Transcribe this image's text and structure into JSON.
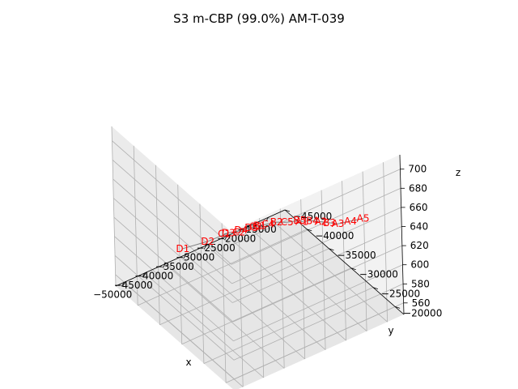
{
  "chart_data": {
    "type": "scatter",
    "projection": "3d",
    "title": "S3 m-CBP (99.0%) AM-T-039",
    "xlabel": "x",
    "ylabel": "y",
    "zlabel": "z",
    "xlim": [
      -52000,
      -11000
    ],
    "ylim": [
      -45000,
      -18000
    ],
    "zlim": [
      548,
      715
    ],
    "x_ticks": [
      -50000,
      -45000,
      -40000,
      -35000,
      -30000,
      -25000,
      -20000,
      -15000
    ],
    "y_ticks": [
      -45000,
      -40000,
      -35000,
      -30000,
      -25000,
      -20000
    ],
    "z_ticks": [
      560,
      580,
      600,
      620,
      640,
      660,
      680,
      700
    ],
    "tick_labels": {
      "x": [
        "−50000",
        "−45000",
        "−40000",
        "−35000",
        "−30000",
        "−25000",
        "−20000",
        "−15000"
      ],
      "y": [
        "−45000",
        "−40000",
        "−35000",
        "−30000",
        "−25000",
        "−20000"
      ],
      "z": [
        "560",
        "580",
        "600",
        "620",
        "640",
        "660",
        "680",
        "700"
      ]
    },
    "grid": true,
    "line_color": "#808080",
    "label_color": "#ff0000",
    "pane_colors": [
      "#f2f2f2",
      "#ebebeb",
      "#e6e6e6"
    ],
    "points": [
      {
        "label": "A5",
        "x": -14000,
        "y": -24000,
        "z": 630
      },
      {
        "label": "A4",
        "x": -16000,
        "y": -25000,
        "z": 627
      },
      {
        "label": "A3",
        "x": -18000,
        "y": -26000,
        "z": 624
      },
      {
        "label": "B3",
        "x": -19000,
        "y": -27000,
        "z": 623
      },
      {
        "label": "A2",
        "x": -20000,
        "y": -28000,
        "z": 622
      },
      {
        "label": "B4",
        "x": -21000,
        "y": -29000,
        "z": 621
      },
      {
        "label": "A1",
        "x": -22500,
        "y": -30000,
        "z": 619
      },
      {
        "label": "B5",
        "x": -23000,
        "y": -30000,
        "z": 621
      },
      {
        "label": "C5",
        "x": -25000,
        "y": -31000,
        "z": 619
      },
      {
        "label": "B2",
        "x": -26500,
        "y": -32000,
        "z": 618
      },
      {
        "label": "C4",
        "x": -28000,
        "y": -32500,
        "z": 617
      },
      {
        "label": "B1",
        "x": -29500,
        "y": -33000,
        "z": 616
      },
      {
        "label": "C3",
        "x": -30500,
        "y": -33000,
        "z": 617
      },
      {
        "label": "D5",
        "x": -31000,
        "y": -33500,
        "z": 615
      },
      {
        "label": "C2",
        "x": -33000,
        "y": -34500,
        "z": 610
      },
      {
        "label": "D4",
        "x": -33000,
        "y": -34000,
        "z": 614
      },
      {
        "label": "C1",
        "x": -36000,
        "y": -35000,
        "z": 612
      },
      {
        "label": "D3",
        "x": -35500,
        "y": -34500,
        "z": 614
      },
      {
        "label": "D2",
        "x": -40000,
        "y": -35000,
        "z": 612
      },
      {
        "label": "D1",
        "x": -45000,
        "y": -36000,
        "z": 610
      }
    ]
  }
}
